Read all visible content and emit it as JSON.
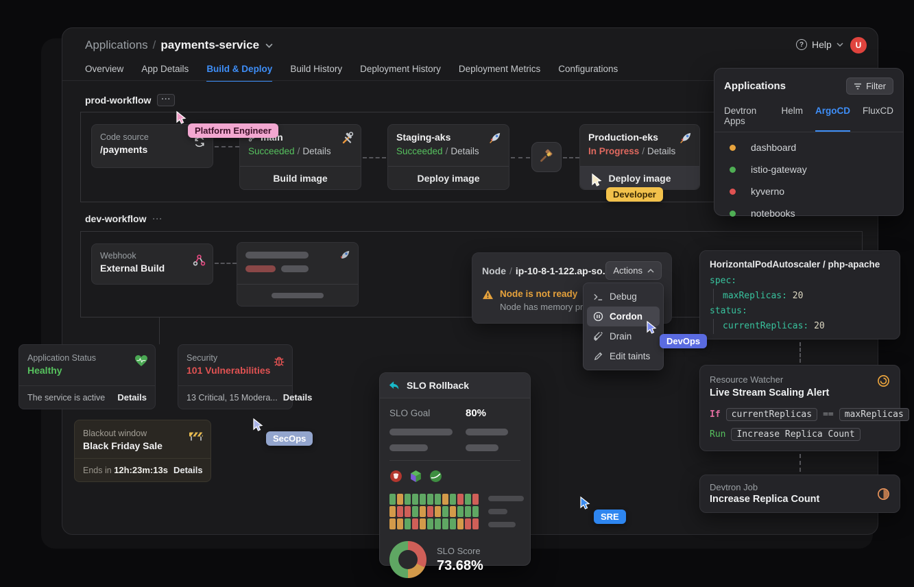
{
  "header": {
    "breadcrumb": {
      "root": "Applications",
      "separator": "/",
      "current": "payments-service"
    },
    "help_label": "Help",
    "avatar_initial": "U"
  },
  "main_tabs": [
    "Overview",
    "App Details",
    "Build & Deploy",
    "Build History",
    "Deployment History",
    "Deployment Metrics",
    "Configurations"
  ],
  "active_main_tab": "Build & Deploy",
  "prod_workflow": {
    "title": "prod-workflow",
    "more_label": "···",
    "code_source": {
      "label": "Code source",
      "value": "/payments"
    },
    "build_stage": {
      "branch": "main",
      "status": "Succeeded",
      "separator": "/",
      "details_label": "Details",
      "action_label": "Build image"
    },
    "staging_stage": {
      "name": "Staging-aks",
      "status": "Succeeded",
      "separator": "/",
      "details_label": "Details",
      "action_label": "Deploy image"
    },
    "production_stage": {
      "name": "Production-eks",
      "status": "In Progress",
      "separator": "/",
      "details_label": "Details",
      "action_label": "Deploy image"
    }
  },
  "dev_workflow": {
    "title": "dev-workflow",
    "more_label": "···",
    "webhook_stage": {
      "label": "Webhook",
      "value": "External Build"
    }
  },
  "applications_panel": {
    "title": "Applications",
    "filter_label": "Filter",
    "tabs": [
      "Devtron Apps",
      "Helm",
      "ArgoCD",
      "FluxCD"
    ],
    "active_tab": "ArgoCD",
    "items": [
      {
        "name": "dashboard",
        "color": "#e8a33d"
      },
      {
        "name": "istio-gateway",
        "color": "#4fae54"
      },
      {
        "name": "kyverno",
        "color": "#e05252"
      },
      {
        "name": "notebooks",
        "color": "#4fae54"
      }
    ]
  },
  "node_panel": {
    "type_label": "Node",
    "separator": "/",
    "name": "ip-10-8-1-122.ap-so...",
    "actions_label": "Actions",
    "warning_title": "Node is not ready",
    "warning_description": "Node has memory pre...",
    "menu": [
      {
        "label": "Debug"
      },
      {
        "label": "Cordon",
        "active": true
      },
      {
        "label": "Drain"
      },
      {
        "label": "Edit taints"
      }
    ]
  },
  "hpa_panel": {
    "title": "HorizontalPodAutoscaler / php-apache",
    "code": {
      "spec_key": "spec:",
      "max_replicas_key": "maxReplicas:",
      "max_replicas_value": "20",
      "status_key": "status:",
      "current_replicas_key": "currentReplicas:",
      "current_replicas_value": "20"
    }
  },
  "status_cards": {
    "application": {
      "label": "Application Status",
      "value": "Healthy",
      "footer": "The service is active",
      "details_label": "Details"
    },
    "security": {
      "label": "Security",
      "value": "101 Vulnerabilities",
      "footer": "13 Critical, 15 Modera...",
      "details_label": "Details"
    }
  },
  "blackout_card": {
    "label": "Blackout window",
    "value": "Black Friday Sale",
    "ends_in_label": "Ends in",
    "countdown": "12h:23m:13s",
    "details_label": "Details"
  },
  "slo_panel": {
    "title": "SLO Rollback",
    "goal_label": "SLO Goal",
    "goal_value": "80%",
    "score_label": "SLO Score",
    "score_value": "73.68%",
    "grid_colors": {
      "g": "#5fa763",
      "o": "#d39a4a",
      "r": "#cf5f58"
    },
    "grid": [
      [
        "g",
        "o",
        "g",
        "g",
        "g",
        "g",
        "g",
        "o",
        "g",
        "r",
        "g",
        "r"
      ],
      [
        "o",
        "r",
        "r",
        "g",
        "o",
        "r",
        "o",
        "g",
        "o",
        "g",
        "g",
        "g"
      ],
      [
        "o",
        "o",
        "g",
        "r",
        "o",
        "g",
        "g",
        "g",
        "g",
        "o",
        "r",
        "r"
      ]
    ],
    "donut_segments": [
      {
        "color": "#cf5f58",
        "percent": 32
      },
      {
        "color": "#d39a4a",
        "percent": 18
      },
      {
        "color": "#5fa763",
        "percent": 50
      }
    ]
  },
  "resource_watcher": {
    "label": "Resource Watcher",
    "title": "Live Stream Scaling Alert",
    "if_keyword": "If",
    "condition_left": "currentReplicas",
    "operator": "==",
    "condition_right": "maxReplicas",
    "run_keyword": "Run",
    "run_action": "Increase Replica Count"
  },
  "devtron_job": {
    "label": "Devtron Job",
    "title": "Increase Replica Count"
  },
  "cursor_labels": {
    "platform_engineer": "Platform Engineer",
    "developer": "Developer",
    "devops": "DevOps",
    "secops": "SecOps",
    "sre": "SRE"
  }
}
